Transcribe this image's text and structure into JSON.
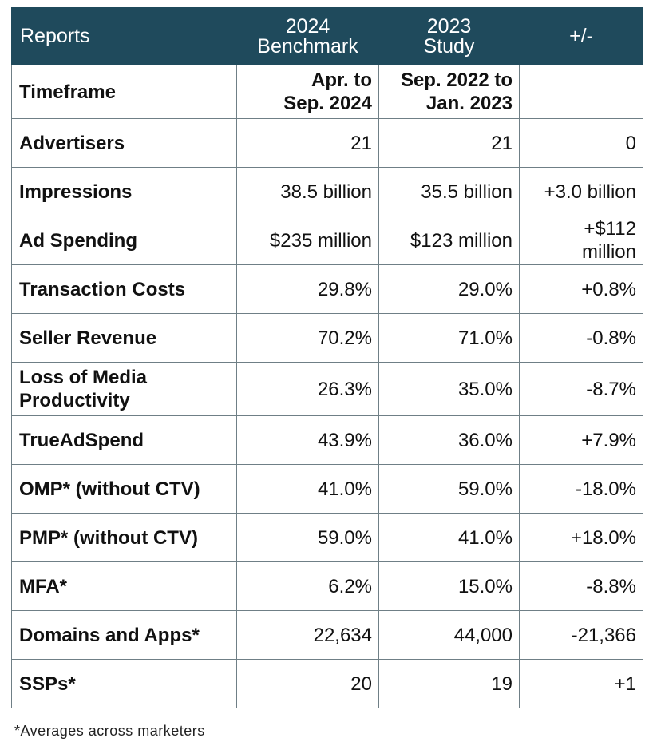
{
  "table": {
    "header": {
      "col1": "Reports",
      "col2_line1": "2024",
      "col2_line2": "Benchmark",
      "col3_line1": "2023",
      "col3_line2": "Study",
      "col4": "+/-"
    },
    "timeframe": {
      "label": "Timeframe",
      "benchmark_line1": "Apr. to",
      "benchmark_line2": "Sep. 2024",
      "study_line1": "Sep. 2022 to",
      "study_line2": "Jan. 2023",
      "diff": ""
    },
    "rows": [
      {
        "label": "Advertisers",
        "benchmark": "21",
        "study": "21",
        "diff": "0"
      },
      {
        "label": "Impressions",
        "benchmark": "38.5 billion",
        "study": "35.5 billion",
        "diff": "+3.0 billion"
      },
      {
        "label": "Ad Spending",
        "benchmark": "$235 million",
        "study": "$123 million",
        "diff": "+$112 million"
      },
      {
        "label": "Transaction Costs",
        "benchmark": "29.8%",
        "study": "29.0%",
        "diff": "+0.8%"
      },
      {
        "label": "Seller Revenue",
        "benchmark": "70.2%",
        "study": "71.0%",
        "diff": "-0.8%"
      },
      {
        "label": "Loss of Media Productivity",
        "benchmark": "26.3%",
        "study": "35.0%",
        "diff": "-8.7%"
      },
      {
        "label": "TrueAdSpend",
        "benchmark": "43.9%",
        "study": "36.0%",
        "diff": "+7.9%"
      },
      {
        "label": "OMP* (without CTV)",
        "benchmark": "41.0%",
        "study": "59.0%",
        "diff": "-18.0%"
      },
      {
        "label": "PMP* (without CTV)",
        "benchmark": "59.0%",
        "study": "41.0%",
        "diff": "+18.0%"
      },
      {
        "label": "MFA*",
        "benchmark": "6.2%",
        "study": "15.0%",
        "diff": "-8.8%"
      },
      {
        "label": "Domains and Apps*",
        "benchmark": "22,634",
        "study": "44,000",
        "diff": "-21,366"
      },
      {
        "label": "SSPs*",
        "benchmark": "20",
        "study": "19",
        "diff": "+1"
      }
    ]
  },
  "footnote": "*Averages across marketers"
}
